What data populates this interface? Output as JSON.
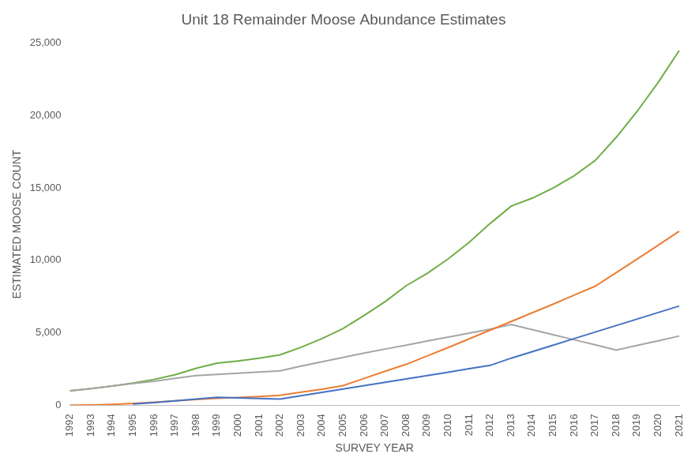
{
  "chart_data": {
    "type": "line",
    "title": "Unit 18 Remainder Moose Abundance Estimates",
    "x_label": "SURVEY YEAR",
    "y_label": "ESTIMATED MOOSE COUNT",
    "categories": [
      "1992",
      "1993",
      "1994",
      "1995",
      "1996",
      "1997",
      "1998",
      "1999",
      "2000",
      "2001",
      "2002",
      "2003",
      "2004",
      "2005",
      "2006",
      "2007",
      "2008",
      "2009",
      "2010",
      "2011",
      "2012",
      "2013",
      "2014",
      "2015",
      "2016",
      "2017",
      "2018",
      "2019",
      "2020",
      "2021"
    ],
    "series": [
      {
        "color": "#4472c4",
        "values": [
          null,
          null,
          null,
          80,
          180,
          300,
          420,
          550,
          500,
          460,
          420,
          650,
          890,
          1120,
          1350,
          1580,
          1820,
          2050,
          2280,
          2520,
          2750,
          3250,
          3700,
          4150,
          4600,
          5050,
          5500,
          5950,
          6400,
          6850
        ]
      },
      {
        "color": "#ed7d31",
        "values": [
          0,
          20,
          60,
          120,
          200,
          300,
          400,
          480,
          540,
          600,
          680,
          900,
          1100,
          1350,
          1850,
          2350,
          2820,
          3400,
          3980,
          4580,
          5180,
          5780,
          6380,
          6980,
          7600,
          8220,
          9160,
          10100,
          11050,
          12020
        ]
      },
      {
        "color": "#a5a5a5",
        "values": [
          1000,
          1150,
          1320,
          1500,
          1650,
          1850,
          2050,
          2130,
          2210,
          2290,
          2380,
          2700,
          3000,
          3300,
          3600,
          3880,
          4150,
          4430,
          4700,
          4980,
          5250,
          5580,
          5220,
          4870,
          4520,
          4170,
          3800,
          4130,
          4450,
          4780
        ]
      },
      {
        "color": "#70ad47",
        "values": [
          1000,
          1150,
          1320,
          1530,
          1780,
          2100,
          2550,
          2900,
          3050,
          3250,
          3480,
          4000,
          4600,
          5300,
          6200,
          7150,
          8250,
          9100,
          10100,
          11250,
          12550,
          13750,
          14300,
          15000,
          15850,
          16900,
          18500,
          20300,
          22300,
          24500
        ]
      }
    ],
    "ylim": [
      0,
      25000
    ],
    "yticks": [
      0,
      {
        "value": 5000,
        "label": "5,000"
      },
      {
        "value": 10000,
        "label": "10,000"
      },
      {
        "value": 15000,
        "label": "15,000"
      },
      {
        "value": 20000,
        "label": "20,000"
      },
      {
        "value": 25000,
        "label": "25,000"
      }
    ],
    "grid": false
  }
}
